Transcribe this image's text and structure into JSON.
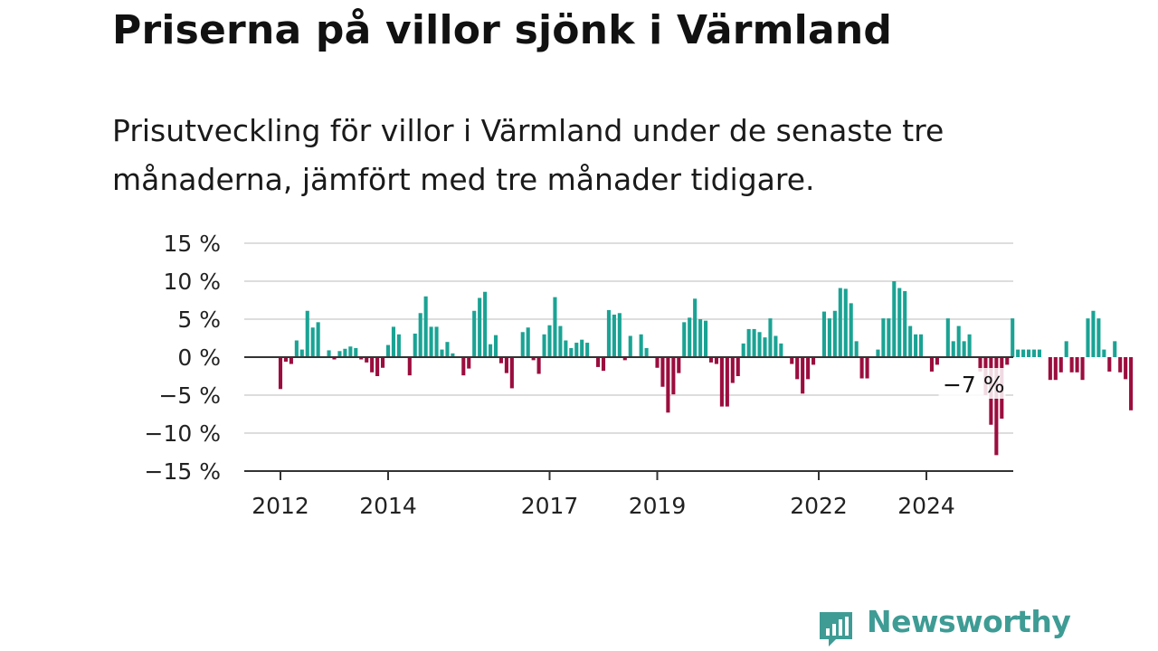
{
  "title": "Priserna på villor sjönk i Värmland",
  "subtitle": "Prisutveckling för villor i Värmland under de senaste tre månaderna, jämfört med tre månader tidigare.",
  "brand": "Newsworthy",
  "colors": {
    "positive": "#1aa394",
    "negative": "#9b0d3e",
    "grid": "#dddddd",
    "axis": "#333333",
    "brand": "#3e9c95"
  },
  "chart_data": {
    "type": "bar",
    "ylim": [
      -15,
      15
    ],
    "yticks": [
      15,
      10,
      5,
      0,
      -5,
      -10,
      -15
    ],
    "ytick_labels": [
      "15 %",
      "10 %",
      "5 %",
      "0 %",
      "−5 %",
      "−10 %",
      "−15 %"
    ],
    "xtick_labels": [
      {
        "label": "2012",
        "index": 0
      },
      {
        "label": "2014",
        "index": 20
      },
      {
        "label": "2017",
        "index": 50
      },
      {
        "label": "2019",
        "index": 70
      },
      {
        "label": "2022",
        "index": 100
      },
      {
        "label": "2024",
        "index": 120
      }
    ],
    "annotation": {
      "label": "−7 %",
      "index": 129
    },
    "values": [
      -4.2,
      -0.6,
      -0.9,
      2.2,
      1.0,
      6.1,
      3.9,
      4.6,
      0.0,
      0.9,
      -0.3,
      0.8,
      1.1,
      1.4,
      1.2,
      -0.3,
      -0.7,
      -2.0,
      -2.5,
      -1.4,
      1.6,
      4.0,
      3.0,
      0.0,
      -2.4,
      3.1,
      5.8,
      8.0,
      4.0,
      4.0,
      1.0,
      2.0,
      0.5,
      0.0,
      -2.4,
      -1.5,
      6.1,
      7.8,
      8.6,
      1.7,
      2.9,
      -0.8,
      -2.1,
      -4.1,
      0.0,
      3.3,
      3.9,
      -0.4,
      -2.2,
      3.0,
      4.2,
      7.9,
      4.1,
      2.2,
      1.2,
      1.9,
      2.3,
      1.9,
      0.0,
      -1.3,
      -1.8,
      6.2,
      5.6,
      5.8,
      -0.4,
      2.8,
      0.0,
      3.0,
      1.2,
      0.0,
      -1.4,
      -3.9,
      -7.3,
      -4.9,
      -2.1,
      4.6,
      5.2,
      7.7,
      5.0,
      4.8,
      -0.7,
      -0.9,
      -6.5,
      -6.5,
      -3.4,
      -2.5,
      1.8,
      3.7,
      3.7,
      3.3,
      2.6,
      5.1,
      2.8,
      1.8,
      0.0,
      -0.9,
      -2.9,
      -4.8,
      -2.9,
      -1.0,
      0.0,
      6.0,
      5.1,
      6.1,
      9.1,
      9.0,
      7.1,
      2.1,
      -2.8,
      -2.8,
      0.0,
      1.0,
      5.1,
      5.1,
      10.0,
      9.1,
      8.7,
      4.1,
      3.0,
      3.0,
      0.0,
      -1.9,
      -1.0,
      0.0,
      5.1,
      2.1,
      4.1,
      2.1,
      3.0,
      0.0,
      -1.9,
      -5.0,
      -8.9,
      -12.9,
      -8.1,
      -1.0,
      5.1,
      1.0,
      1.0,
      1.0,
      1.0,
      1.0,
      0.0,
      -3.0,
      -3.0,
      -2.0,
      2.1,
      -2.0,
      -2.0,
      -3.0,
      5.1,
      6.1,
      5.1,
      1.0,
      -1.9,
      2.1,
      -2.0,
      -2.9,
      -7.0
    ]
  }
}
